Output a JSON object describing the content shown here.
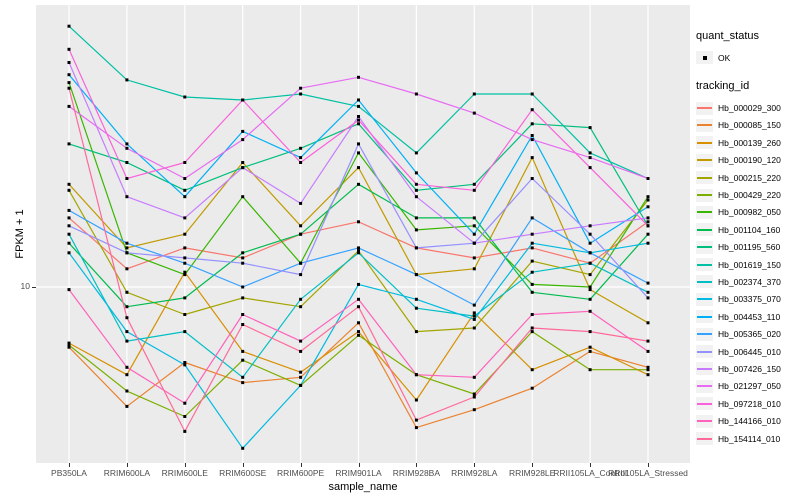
{
  "figure": {
    "x_axis_title": "sample_name",
    "y_axis_title": "FPKM + 1",
    "y_tick_label": "10"
  },
  "legend": {
    "quant_status_title": "quant_status",
    "quant_status_items": [
      {
        "label": "OK",
        "marker": "black-point"
      }
    ],
    "tracking_id_title": "tracking_id",
    "position": "right"
  },
  "colors": {
    "panel_background": "#EBEBEB",
    "gridline": "#FFFFFF",
    "legend_key_background": "#F2F2F2",
    "tick_text": "#4D4D4D",
    "point": "#000000"
  },
  "chart_data": {
    "type": "line",
    "title": "",
    "xlabel": "sample_name",
    "ylabel": "FPKM + 1",
    "y_scale": "log10",
    "y_ticks": [
      10
    ],
    "ylim": [
      2.6,
      87
    ],
    "grid": "vertical white gridline per category; horizontal white gridline at y=10",
    "legend_position": "right",
    "point_marker": {
      "shape": "small-black-square",
      "meaning": "quant_status OK"
    },
    "categories": [
      "PB350LA",
      "RRIM600LA",
      "RRIM600LE",
      "RRIM600SE",
      "RRIM600PE",
      "RRIM901LA",
      "RRIM928BA",
      "RRIM928LA",
      "RRIM928LE",
      "RRII105LA_Control",
      "RRII105LA_Stressed"
    ],
    "series": [
      {
        "name": "Hb_000029_300",
        "color": "#F8766D",
        "values": [
          17,
          11.5,
          13.5,
          12.5,
          15,
          16.5,
          13.5,
          12.5,
          13.5,
          12,
          16.5
        ]
      },
      {
        "name": "Hb_000085_150",
        "color": "#EA8331",
        "values": [
          6.3,
          4,
          5.6,
          4.8,
          5,
          7.6,
          3.4,
          3.9,
          4.6,
          6.1,
          5.4
        ]
      },
      {
        "name": "Hb_000139_260",
        "color": "#D89000",
        "values": [
          6.5,
          5.1,
          11.2,
          6.1,
          5.2,
          7.1,
          4.2,
          8.2,
          5.3,
          6.3,
          5.1
        ]
      },
      {
        "name": "Hb_000190_120",
        "color": "#C09B00",
        "values": [
          22,
          13.5,
          15,
          26,
          16,
          25,
          11,
          11.5,
          27,
          9.8,
          7.6
        ]
      },
      {
        "name": "Hb_000215_220",
        "color": "#A3A500",
        "values": [
          21,
          9.6,
          8.1,
          9.2,
          8.6,
          13.2,
          7.1,
          7.3,
          12.2,
          11,
          19.5
        ]
      },
      {
        "name": "Hb_000429_220",
        "color": "#7CAE00",
        "values": [
          6.4,
          4.5,
          3.7,
          5.7,
          4.7,
          6.9,
          5.1,
          4.4,
          7.1,
          5.3,
          5.3
        ]
      },
      {
        "name": "Hb_000982_050",
        "color": "#39B600",
        "values": [
          48,
          13,
          11,
          20,
          12,
          28,
          15.5,
          16,
          10.2,
          10,
          20
        ]
      },
      {
        "name": "Hb_001104_160",
        "color": "#00BB4E",
        "values": [
          14,
          8.6,
          9.2,
          13,
          15,
          22,
          17,
          17,
          9.6,
          9.1,
          15
        ]
      },
      {
        "name": "Hb_001195_560",
        "color": "#00BF7D",
        "values": [
          30,
          26,
          21,
          25,
          29,
          35,
          21,
          22,
          35,
          34,
          16
        ]
      },
      {
        "name": "Hb_001619_150",
        "color": "#00C1A3",
        "values": [
          74,
          49,
          43,
          42,
          44,
          40,
          28,
          44,
          44,
          28,
          23
        ]
      },
      {
        "name": "Hb_002374_370",
        "color": "#00BFC4",
        "values": [
          15,
          6.6,
          7.1,
          5,
          9.1,
          13,
          8.5,
          8,
          11.2,
          12,
          9.6
        ]
      },
      {
        "name": "Hb_003375_070",
        "color": "#00BAE0",
        "values": [
          13,
          7.1,
          5.5,
          2.9,
          4.7,
          10.2,
          9.1,
          7.8,
          14,
          13,
          14
        ]
      },
      {
        "name": "Hb_004453_110",
        "color": "#00B0F6",
        "values": [
          51,
          30,
          20,
          33,
          27,
          42,
          24,
          15,
          32,
          14,
          18.5
        ]
      },
      {
        "name": "Hb_005365_020",
        "color": "#35A2FF",
        "values": [
          18,
          14,
          12,
          10,
          12,
          13.5,
          11,
          8.7,
          17,
          13,
          10.3
        ]
      },
      {
        "name": "Hb_006445_010",
        "color": "#9590FF",
        "values": [
          16,
          13,
          12.5,
          12,
          11,
          30,
          13.5,
          14,
          23,
          15,
          9.2
        ]
      },
      {
        "name": "Hb_007426_150",
        "color": "#C77CFF",
        "values": [
          56,
          20,
          17,
          25,
          19,
          37,
          20,
          14,
          15,
          16,
          17
        ]
      },
      {
        "name": "Hb_021297_050",
        "color": "#E76BF3",
        "values": [
          40,
          29,
          23,
          31,
          46,
          50,
          44,
          38,
          31,
          27,
          23
        ]
      },
      {
        "name": "Hb_097218_010",
        "color": "#FA62DB",
        "values": [
          62,
          23,
          26,
          42,
          26,
          36,
          22,
          21,
          39,
          25,
          16
        ]
      },
      {
        "name": "Hb_144166_010",
        "color": "#FF62BC",
        "values": [
          9.8,
          5.4,
          4.1,
          8.1,
          6.6,
          9.1,
          5.1,
          5,
          8.1,
          8.3,
          6.1
        ]
      },
      {
        "name": "Hb_154114_010",
        "color": "#FF6A98",
        "values": [
          46,
          7.9,
          3.3,
          7.5,
          6.1,
          8.6,
          3.6,
          4.3,
          7.3,
          7.1,
          6.6
        ]
      }
    ]
  }
}
